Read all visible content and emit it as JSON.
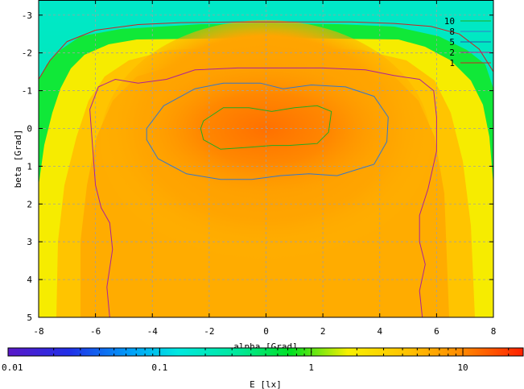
{
  "chart_data": {
    "type": "heatmap",
    "title": "",
    "xlabel": "alpha [Grad]",
    "ylabel": "beta [Grad]",
    "colorbar_label": "E [lx]",
    "xlim": [
      -8,
      8
    ],
    "ylim": [
      -3.4,
      5
    ],
    "y_inverted": true,
    "x_ticks": [
      -8,
      -6,
      -4,
      -2,
      0,
      2,
      4,
      6,
      8
    ],
    "x_tick_labels": [
      "-8",
      "-6",
      "-4",
      "-2",
      "0",
      "2",
      "4",
      "6",
      "8"
    ],
    "y_ticks": [
      -3,
      -2,
      -1,
      0,
      1,
      2,
      3,
      4,
      5
    ],
    "y_tick_labels": [
      "-3",
      "-2",
      "-1",
      "0",
      "1",
      "2",
      "3",
      "4",
      "5"
    ],
    "colorbar_scale": "log",
    "colorbar_range": [
      0.01,
      25
    ],
    "colorbar_ticks": [
      0.01,
      0.1,
      1,
      10
    ],
    "colorbar_tick_labels": [
      "0.01",
      "0.1",
      "1",
      "10"
    ],
    "grid": true,
    "legend_position": "top-right",
    "contours": [
      {
        "level": "10",
        "color": "#22aa22",
        "points": [
          [
            -2.2,
            -0.2
          ],
          [
            -1.5,
            -0.55
          ],
          [
            -0.6,
            -0.55
          ],
          [
            0.2,
            -0.45
          ],
          [
            1.0,
            -0.55
          ],
          [
            1.8,
            -0.6
          ],
          [
            2.3,
            -0.45
          ],
          [
            2.2,
            0.1
          ],
          [
            1.8,
            0.4
          ],
          [
            0.8,
            0.45
          ],
          [
            0.2,
            0.45
          ],
          [
            -0.6,
            0.5
          ],
          [
            -1.6,
            0.55
          ],
          [
            -2.2,
            0.3
          ],
          [
            -2.3,
            0.0
          ],
          [
            -2.2,
            -0.2
          ]
        ]
      },
      {
        "level": "8",
        "color": "#3377cc",
        "points": [
          [
            -4.2,
            0.0
          ],
          [
            -3.6,
            -0.6
          ],
          [
            -2.5,
            -1.05
          ],
          [
            -1.5,
            -1.2
          ],
          [
            -0.2,
            -1.2
          ],
          [
            0.6,
            -1.05
          ],
          [
            1.6,
            -1.15
          ],
          [
            2.8,
            -1.1
          ],
          [
            3.8,
            -0.85
          ],
          [
            4.3,
            -0.3
          ],
          [
            4.25,
            0.35
          ],
          [
            3.8,
            0.95
          ],
          [
            2.5,
            1.25
          ],
          [
            1.5,
            1.2
          ],
          [
            0.5,
            1.25
          ],
          [
            -0.5,
            1.35
          ],
          [
            -1.6,
            1.35
          ],
          [
            -2.8,
            1.2
          ],
          [
            -3.8,
            0.8
          ],
          [
            -4.2,
            0.3
          ],
          [
            -4.2,
            0.0
          ]
        ]
      },
      {
        "level": "5",
        "color": "#2255aa",
        "points": []
      },
      {
        "level": "2",
        "color": "#aa2299",
        "points": [
          [
            -5.5,
            5.0
          ],
          [
            -5.6,
            4.2
          ],
          [
            -5.4,
            3.2
          ],
          [
            -5.5,
            2.5
          ],
          [
            -5.8,
            2.1
          ],
          [
            -6.0,
            1.5
          ],
          [
            -6.1,
            0.5
          ],
          [
            -6.2,
            -0.5
          ],
          [
            -5.9,
            -1.1
          ],
          [
            -5.3,
            -1.3
          ],
          [
            -4.5,
            -1.2
          ],
          [
            -3.5,
            -1.3
          ],
          [
            -2.5,
            -1.55
          ],
          [
            -1.0,
            -1.6
          ],
          [
            0.5,
            -1.6
          ],
          [
            2.0,
            -1.6
          ],
          [
            3.5,
            -1.55
          ],
          [
            4.5,
            -1.4
          ],
          [
            5.4,
            -1.3
          ],
          [
            5.9,
            -1.0
          ],
          [
            6.0,
            -0.3
          ],
          [
            6.0,
            0.6
          ],
          [
            5.7,
            1.6
          ],
          [
            5.4,
            2.3
          ],
          [
            5.4,
            3.0
          ],
          [
            5.6,
            3.6
          ],
          [
            5.4,
            4.3
          ],
          [
            5.5,
            5.0
          ]
        ]
      },
      {
        "level": "1",
        "color": "#cc2222",
        "points": [
          [
            -8.0,
            -1.3
          ],
          [
            -7.6,
            -1.8
          ],
          [
            -7.0,
            -2.3
          ],
          [
            -6.0,
            -2.6
          ],
          [
            -4.5,
            -2.75
          ],
          [
            -3.0,
            -2.8
          ],
          [
            -1.0,
            -2.82
          ],
          [
            1.0,
            -2.82
          ],
          [
            3.0,
            -2.82
          ],
          [
            4.5,
            -2.78
          ],
          [
            5.8,
            -2.7
          ],
          [
            6.8,
            -2.5
          ],
          [
            7.5,
            -2.1
          ],
          [
            8.0,
            -1.5
          ]
        ]
      }
    ]
  }
}
